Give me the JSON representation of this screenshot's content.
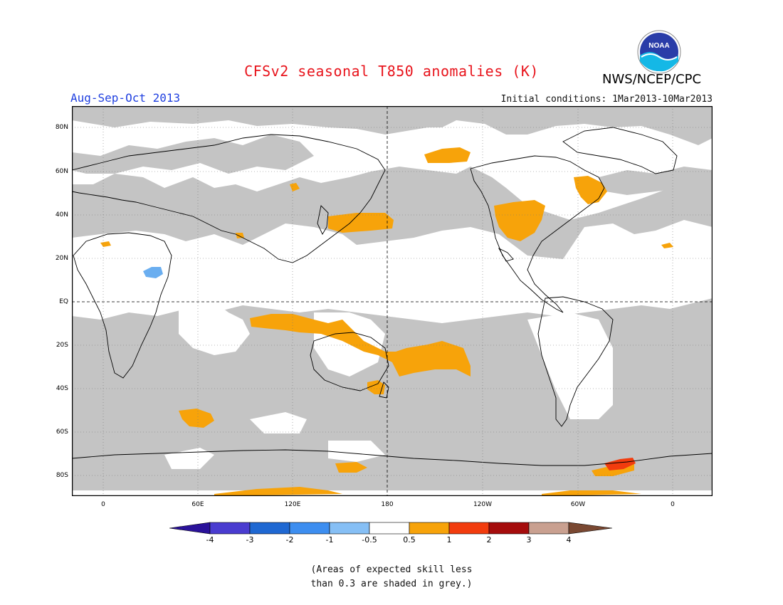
{
  "header": {
    "title": "CFSv2 seasonal T850 anomalies (K)",
    "season": "Aug-Sep-Oct 2013",
    "initial_conditions": "Initial conditions: 1Mar2013-10Mar2013",
    "agency": "NWS/NCEP/CPC",
    "logo_text": "NOAA"
  },
  "map": {
    "lat_labels": [
      "80N",
      "60N",
      "40N",
      "20N",
      "EQ",
      "20S",
      "40S",
      "60S",
      "80S"
    ],
    "lon_labels": [
      "0",
      "60E",
      "120E",
      "180",
      "120W",
      "60W",
      "0"
    ],
    "colors": {
      "skill_grey": "#c4c4c4",
      "anom_05_1": "#f7a30a",
      "anom_1_2": "#f23c0e",
      "anom_neg_05_1": "#6aaef0"
    }
  },
  "colorbar": {
    "labels": [
      "-4",
      "-3",
      "-2",
      "-1",
      "-0.5",
      "0.5",
      "1",
      "2",
      "3",
      "4"
    ],
    "colors": [
      "#2a129a",
      "#4a3cd0",
      "#1f68d2",
      "#3d8ef0",
      "#86bff5",
      "#ffffff",
      "#f7a30a",
      "#f23c0e",
      "#a50c0c",
      "#c9a090",
      "#7a4832"
    ]
  },
  "footnote": {
    "line1": "(Areas of expected skill less",
    "line2": "than 0.3 are shaded in grey.)"
  }
}
